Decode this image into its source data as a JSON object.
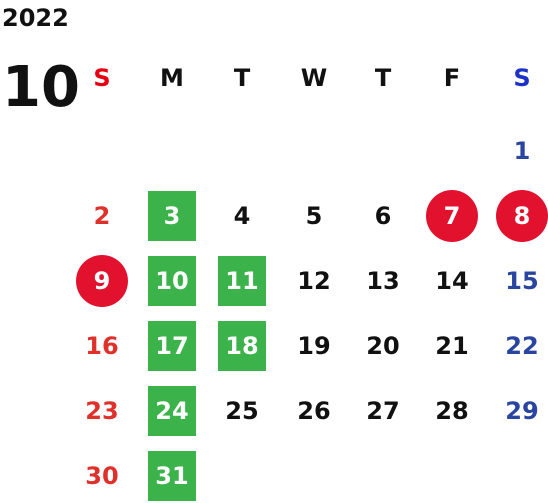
{
  "year": "2022",
  "month": "10",
  "weekdays": [
    "S",
    "M",
    "T",
    "W",
    "T",
    "F",
    "S"
  ],
  "colors": {
    "sunday": "#e0302a",
    "saturday": "#2a45a0",
    "holiday_circle": "#e2122f",
    "highlight_green": "#3cb34a"
  },
  "days": [
    {
      "label": "1",
      "col": 6,
      "row": 0,
      "mark": "none"
    },
    {
      "label": "2",
      "col": 0,
      "row": 1,
      "mark": "none"
    },
    {
      "label": "3",
      "col": 1,
      "row": 1,
      "mark": "green"
    },
    {
      "label": "4",
      "col": 2,
      "row": 1,
      "mark": "none"
    },
    {
      "label": "5",
      "col": 3,
      "row": 1,
      "mark": "none"
    },
    {
      "label": "6",
      "col": 4,
      "row": 1,
      "mark": "none"
    },
    {
      "label": "7",
      "col": 5,
      "row": 1,
      "mark": "red"
    },
    {
      "label": "8",
      "col": 6,
      "row": 1,
      "mark": "red"
    },
    {
      "label": "9",
      "col": 0,
      "row": 2,
      "mark": "red"
    },
    {
      "label": "10",
      "col": 1,
      "row": 2,
      "mark": "green"
    },
    {
      "label": "11",
      "col": 2,
      "row": 2,
      "mark": "green"
    },
    {
      "label": "12",
      "col": 3,
      "row": 2,
      "mark": "none"
    },
    {
      "label": "13",
      "col": 4,
      "row": 2,
      "mark": "none"
    },
    {
      "label": "14",
      "col": 5,
      "row": 2,
      "mark": "none"
    },
    {
      "label": "15",
      "col": 6,
      "row": 2,
      "mark": "none"
    },
    {
      "label": "16",
      "col": 0,
      "row": 3,
      "mark": "none"
    },
    {
      "label": "17",
      "col": 1,
      "row": 3,
      "mark": "green"
    },
    {
      "label": "18",
      "col": 2,
      "row": 3,
      "mark": "green"
    },
    {
      "label": "19",
      "col": 3,
      "row": 3,
      "mark": "none"
    },
    {
      "label": "20",
      "col": 4,
      "row": 3,
      "mark": "none"
    },
    {
      "label": "21",
      "col": 5,
      "row": 3,
      "mark": "none"
    },
    {
      "label": "22",
      "col": 6,
      "row": 3,
      "mark": "none"
    },
    {
      "label": "23",
      "col": 0,
      "row": 4,
      "mark": "none"
    },
    {
      "label": "24",
      "col": 1,
      "row": 4,
      "mark": "green"
    },
    {
      "label": "25",
      "col": 2,
      "row": 4,
      "mark": "none"
    },
    {
      "label": "26",
      "col": 3,
      "row": 4,
      "mark": "none"
    },
    {
      "label": "27",
      "col": 4,
      "row": 4,
      "mark": "none"
    },
    {
      "label": "28",
      "col": 5,
      "row": 4,
      "mark": "none"
    },
    {
      "label": "29",
      "col": 6,
      "row": 4,
      "mark": "none"
    },
    {
      "label": "30",
      "col": 0,
      "row": 5,
      "mark": "none"
    },
    {
      "label": "31",
      "col": 1,
      "row": 5,
      "mark": "green"
    }
  ]
}
